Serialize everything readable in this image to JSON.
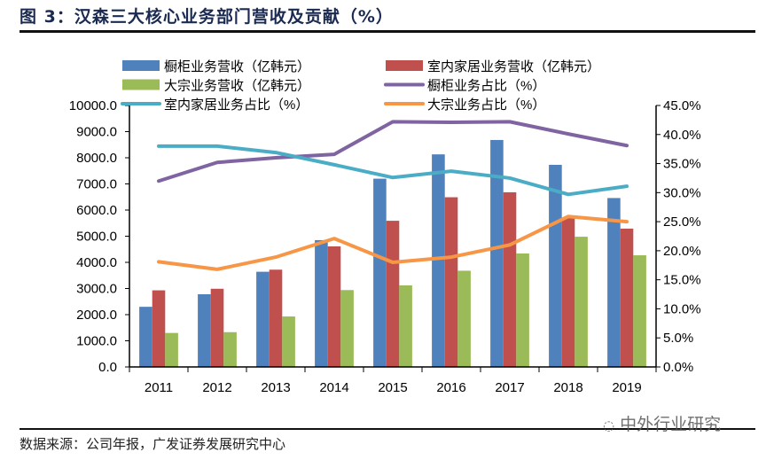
{
  "title": "图 3：汉森三大核心业务部门营收及贡献（%）",
  "source": "数据来源：公司年报，广发证券发展研究中心",
  "watermark": "中外行业研究",
  "chart_data": {
    "type": "bar+line",
    "title": "图 3：汉森三大核心业务部门营收及贡献（%）",
    "categories": [
      "2011",
      "2012",
      "2013",
      "2014",
      "2015",
      "2016",
      "2017",
      "2018",
      "2019"
    ],
    "left_axis": {
      "ylim": [
        0,
        10000
      ],
      "ticks": [
        "0.0",
        "1000.0",
        "2000.0",
        "3000.0",
        "4000.0",
        "5000.0",
        "6000.0",
        "7000.0",
        "8000.0",
        "9000.0",
        "10000.0"
      ]
    },
    "right_axis": {
      "ylim": [
        0,
        45
      ],
      "ticks": [
        "0.0%",
        "5.0%",
        "10.0%",
        "15.0%",
        "20.0%",
        "25.0%",
        "30.0%",
        "35.0%",
        "40.0%",
        "45.0%"
      ]
    },
    "grid": false,
    "legend_position": "top",
    "bar_series": [
      {
        "name": "橱柜业务营收（亿韩元）",
        "color": "#4f81bd",
        "values": [
          2300,
          2780,
          3640,
          4850,
          7200,
          8130,
          8680,
          7730,
          6460
        ]
      },
      {
        "name": "室内家居业务营收（亿韩元）",
        "color": "#c0504d",
        "values": [
          2930,
          2990,
          3720,
          4610,
          5590,
          6490,
          6680,
          5710,
          5290
        ]
      },
      {
        "name": "大宗业务营收（亿韩元）",
        "color": "#9bbb59",
        "values": [
          1300,
          1330,
          1930,
          2940,
          3120,
          3680,
          4340,
          4980,
          4270
        ]
      }
    ],
    "line_series": [
      {
        "name": "橱柜业务占比（%）",
        "color": "#8064a2",
        "values": [
          32.0,
          35.2,
          36.0,
          36.6,
          42.2,
          42.1,
          42.2,
          40.1,
          38.1
        ]
      },
      {
        "name": "室内家居业务占比（%）",
        "color": "#4bacc6",
        "values": [
          38.0,
          38.0,
          36.9,
          34.8,
          32.6,
          33.7,
          32.5,
          29.7,
          31.1
        ]
      },
      {
        "name": "大宗业务占比（%）",
        "color": "#f79646",
        "values": [
          18.1,
          16.8,
          18.9,
          22.1,
          18.0,
          18.9,
          21.0,
          25.9,
          25.0
        ]
      }
    ]
  }
}
